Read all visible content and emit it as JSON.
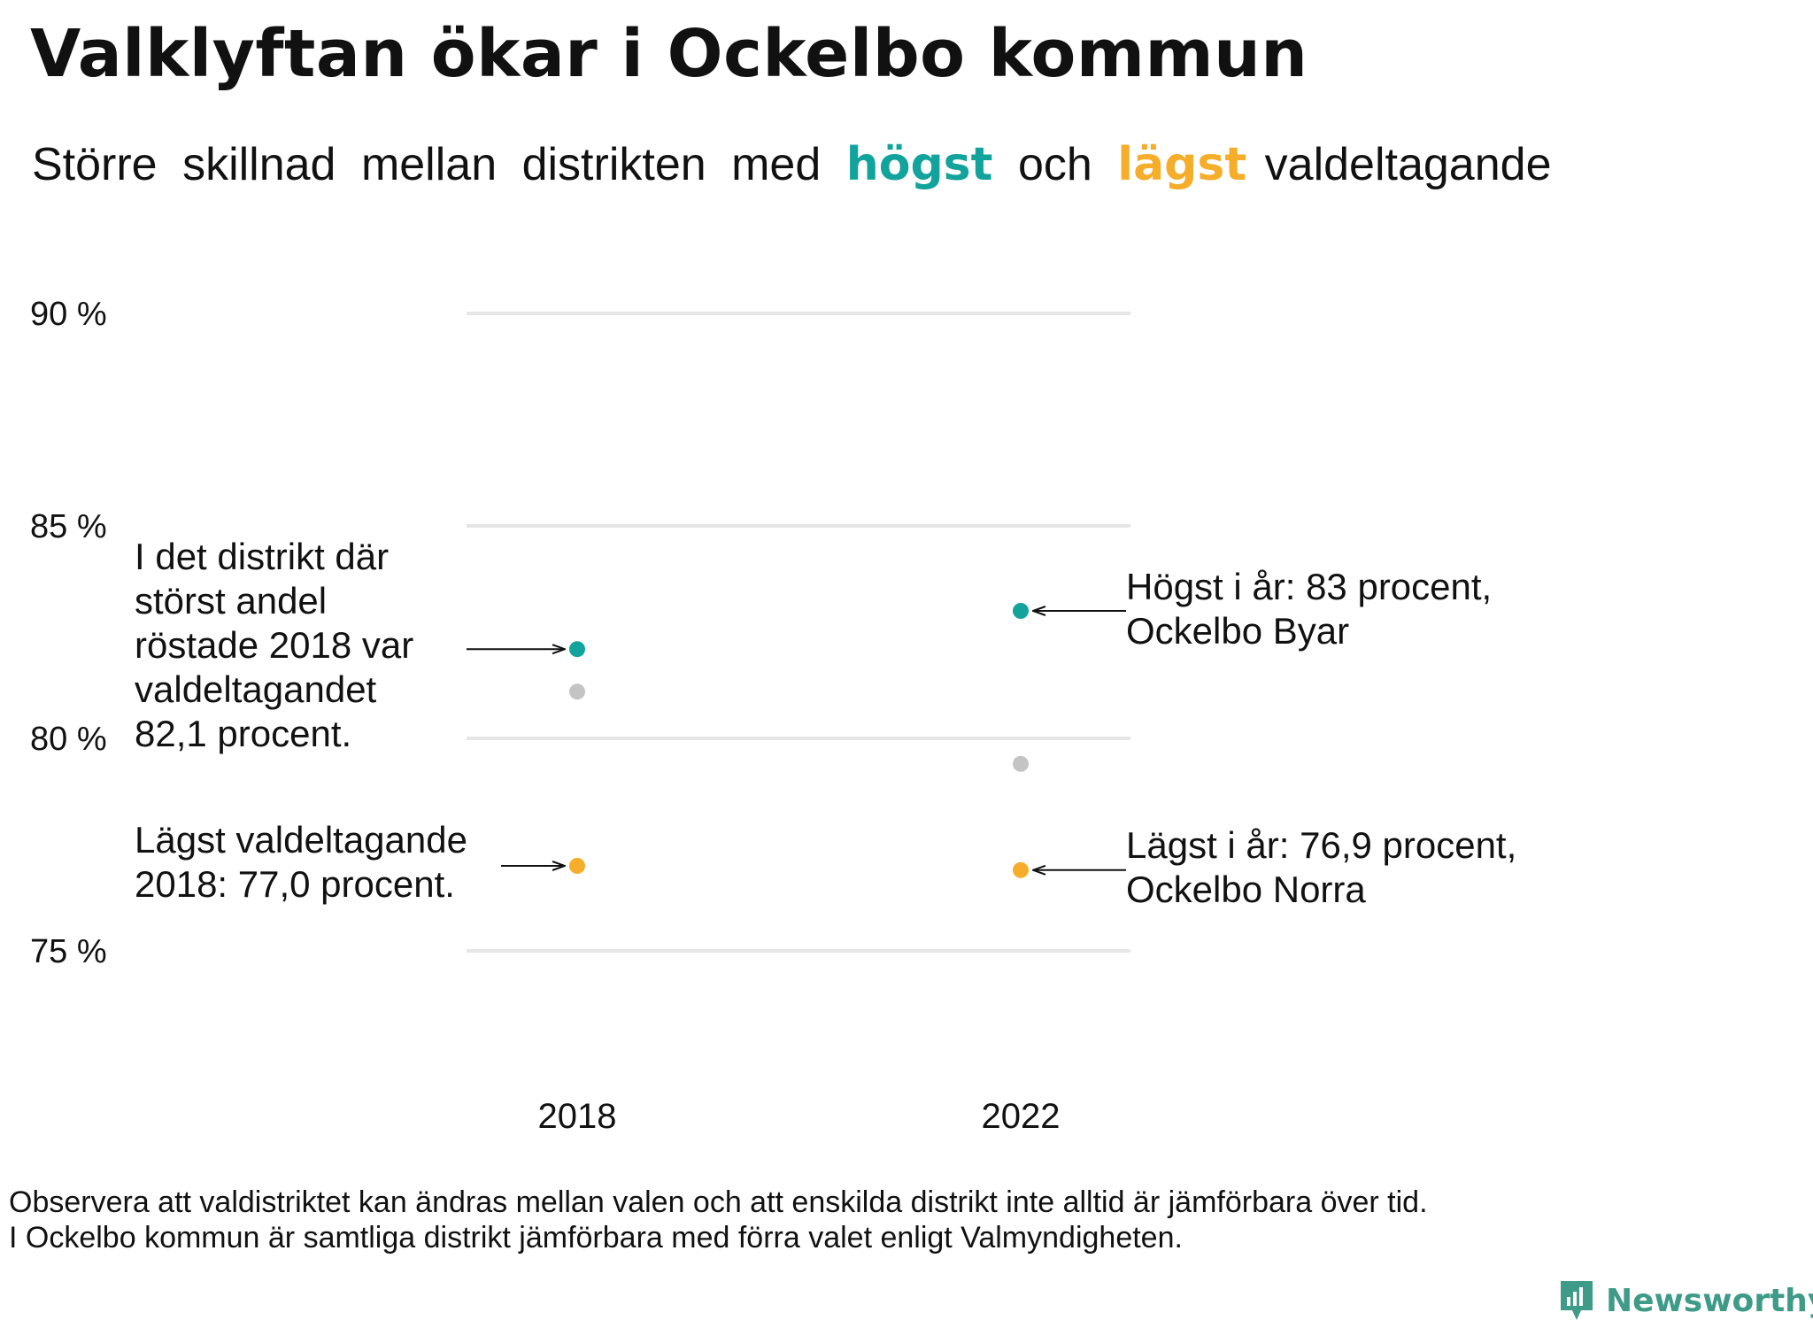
{
  "title": "Valklyftan ökar i Ockelbo kommun",
  "subtitle": {
    "part1": "Större",
    "part2": "skillnad",
    "part3": "mellan",
    "part4": "distrikten",
    "part5": "med",
    "highlight_high": "högst",
    "part6": "och",
    "highlight_low": "lägst",
    "part7": "valdeltagande"
  },
  "colors": {
    "high": "#11a39c",
    "low": "#f5ad2a",
    "other": "#c4c4c4",
    "grid": "#e6e6e6",
    "brand": "#3d9b87"
  },
  "chart_data": {
    "type": "scatter",
    "categories": [
      "2018",
      "2022"
    ],
    "y_ticks": [
      {
        "value": 90,
        "label": "90 %"
      },
      {
        "value": 85,
        "label": "85 %"
      },
      {
        "value": 80,
        "label": "80 %"
      },
      {
        "value": 75,
        "label": "75 %"
      }
    ],
    "ylim": [
      75,
      90
    ],
    "grid": true,
    "series": [
      {
        "role": "high",
        "values": [
          82.1,
          83.0
        ]
      },
      {
        "role": "other",
        "values": [
          81.1,
          79.4
        ]
      },
      {
        "role": "low",
        "values": [
          77.0,
          76.9
        ]
      }
    ]
  },
  "annotations": {
    "high_2018": [
      "I det distrikt där",
      "störst andel",
      "röstade 2018 var",
      "valdeltagandet",
      "82,1 procent."
    ],
    "low_2018": [
      "Lägst valdeltagande",
      "2018: 77,0 procent."
    ],
    "high_2022": [
      "Högst i år: 83 procent,",
      "Ockelbo Byar"
    ],
    "low_2022": [
      "Lägst i år: 76,9 procent,",
      "Ockelbo Norra"
    ]
  },
  "footnote": {
    "line1": "Observera att valdistriktet kan ändras mellan valen och att enskilda distrikt inte alltid är jämförbara över tid.",
    "line2": "I Ockelbo kommun är samtliga distrikt jämförbara med förra valet enligt Valmyndigheten."
  },
  "brand": {
    "name": "Newsworthy",
    "icon": "newsworthy-logo-icon"
  }
}
